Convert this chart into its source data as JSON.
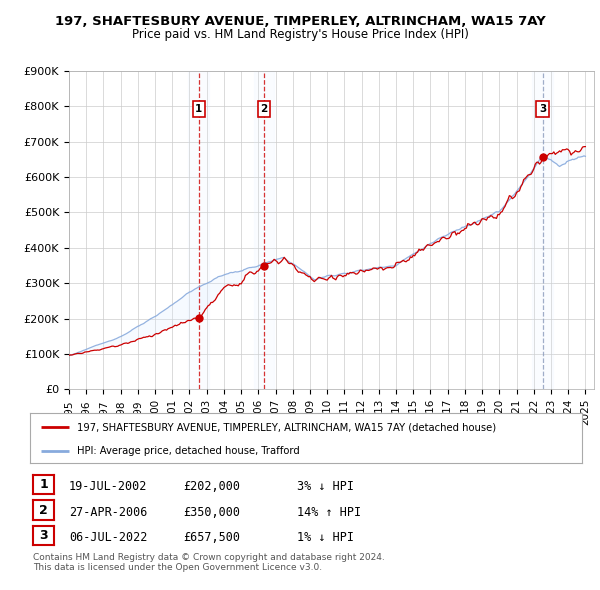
{
  "title": "197, SHAFTESBURY AVENUE, TIMPERLEY, ALTRINCHAM, WA15 7AY",
  "subtitle": "Price paid vs. HM Land Registry's House Price Index (HPI)",
  "ylim": [
    0,
    900000
  ],
  "yticks": [
    0,
    100000,
    200000,
    300000,
    400000,
    500000,
    600000,
    700000,
    800000,
    900000
  ],
  "ytick_labels": [
    "£0",
    "£100K",
    "£200K",
    "£300K",
    "£400K",
    "£500K",
    "£600K",
    "£700K",
    "£800K",
    "£900K"
  ],
  "xlim_start": 1995.0,
  "xlim_end": 2025.5,
  "transactions": [
    {
      "num": 1,
      "date": "19-JUL-2002",
      "price": 202000,
      "x": 2002.54,
      "hpi_rel": "3% ↓ HPI",
      "vline_color": "#cc0000",
      "vline_style": "--"
    },
    {
      "num": 2,
      "date": "27-APR-2006",
      "price": 350000,
      "x": 2006.32,
      "hpi_rel": "14% ↑ HPI",
      "vline_color": "#cc0000",
      "vline_style": "--"
    },
    {
      "num": 3,
      "date": "06-JUL-2022",
      "price": 657500,
      "x": 2022.51,
      "hpi_rel": "1% ↓ HPI",
      "vline_color": "#8899bb",
      "vline_style": "--"
    }
  ],
  "legend_line1": "197, SHAFTESBURY AVENUE, TIMPERLEY, ALTRINCHAM, WA15 7AY (detached house)",
  "legend_line2": "HPI: Average price, detached house, Trafford",
  "footer1": "Contains HM Land Registry data © Crown copyright and database right 2024.",
  "footer2": "This data is licensed under the Open Government Licence v3.0.",
  "red_color": "#cc0000",
  "blue_color": "#88aadd",
  "shade_color": "#ddeeff",
  "background_color": "#ffffff",
  "grid_color": "#cccccc"
}
